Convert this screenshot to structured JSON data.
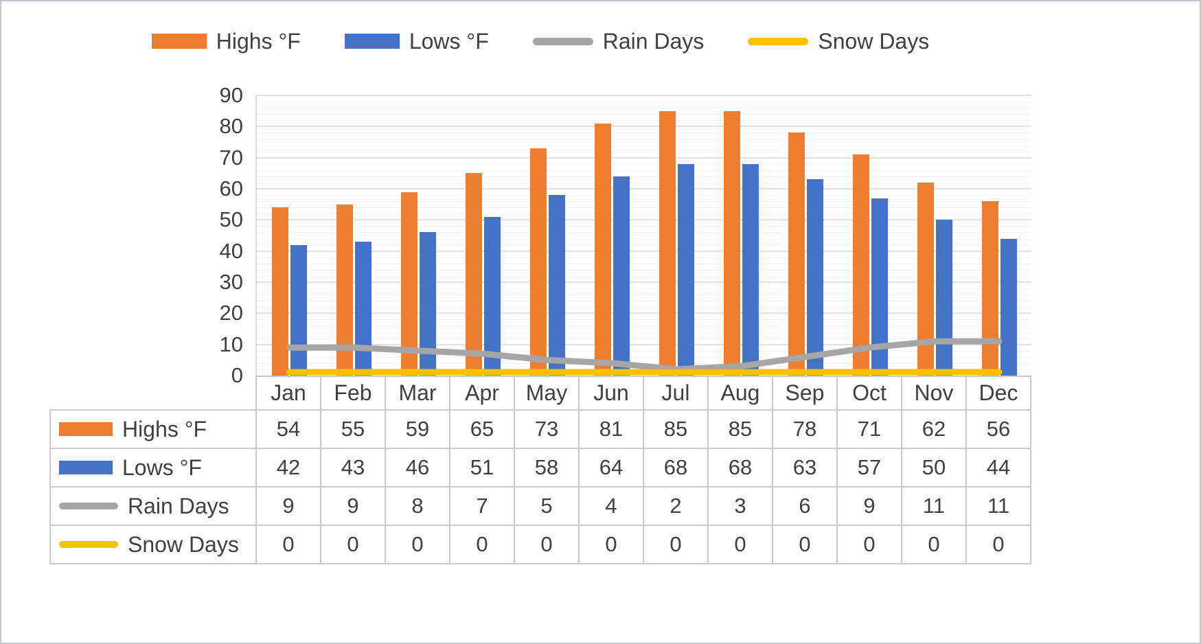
{
  "colors": {
    "background": "#FFFFFF",
    "text": "#404040",
    "grid_major": "#E2E2E2",
    "grid_minor": "#F4F4F4",
    "axis_line": "#D9D9D9",
    "table_border": "#C9C9C9",
    "canvas_border": "#C5C9CD"
  },
  "chart_data": {
    "type": "combo",
    "title": "",
    "xlabel": "",
    "ylabel": "",
    "categories": [
      "Jan",
      "Feb",
      "Mar",
      "Apr",
      "May",
      "Jun",
      "Jul",
      "Aug",
      "Sep",
      "Oct",
      "Nov",
      "Dec"
    ],
    "series": [
      {
        "name": "Highs °F",
        "type": "bar",
        "color": "#ED7D31",
        "values": [
          54,
          55,
          59,
          65,
          73,
          81,
          85,
          85,
          78,
          71,
          62,
          56
        ]
      },
      {
        "name": "Lows °F",
        "type": "bar",
        "color": "#4472C4",
        "values": [
          42,
          43,
          46,
          51,
          58,
          64,
          68,
          68,
          63,
          57,
          50,
          44
        ]
      },
      {
        "name": "Rain Days",
        "type": "line",
        "color": "#A6A6A6",
        "values": [
          9,
          9,
          8,
          7,
          5,
          4,
          2,
          3,
          6,
          9,
          11,
          11
        ]
      },
      {
        "name": "Snow Days",
        "type": "line",
        "color": "#FFC000",
        "values": [
          0,
          0,
          0,
          0,
          0,
          0,
          0,
          0,
          0,
          0,
          0,
          0
        ]
      }
    ],
    "ylim": [
      0,
      90
    ],
    "ytick_step": 10,
    "grid": true,
    "legend_position": "top",
    "data_table_shown": true
  }
}
